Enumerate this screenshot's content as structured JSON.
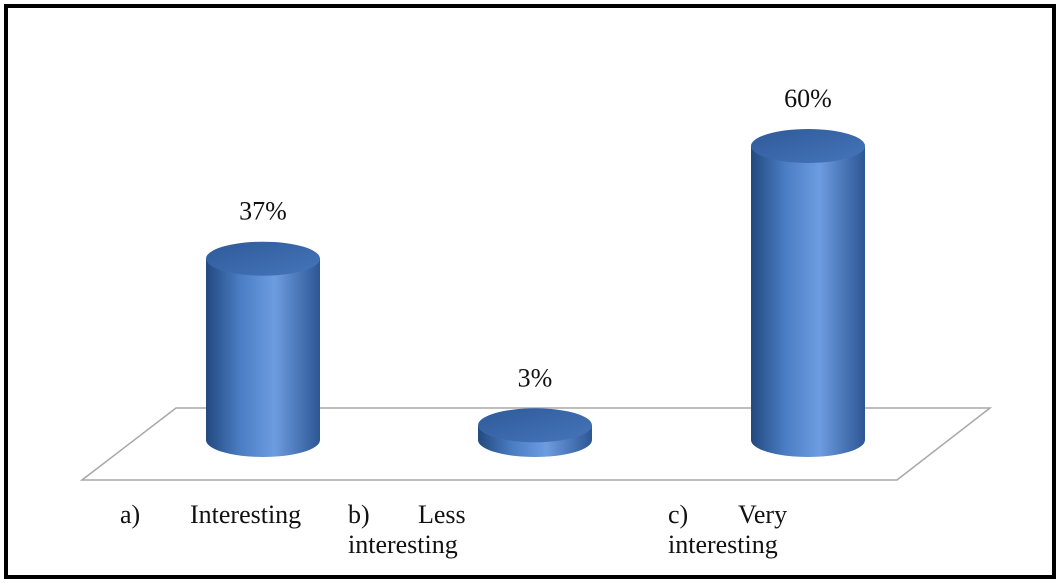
{
  "chart_data": {
    "type": "bar",
    "style": "3d-cylinder",
    "categories": [
      "Interesting",
      "Less interesting",
      "Very interesting"
    ],
    "category_markers": [
      "a)",
      "b)",
      "c)"
    ],
    "values": [
      37,
      3,
      60
    ],
    "data_labels": [
      "37%",
      "3%",
      "60%"
    ],
    "unit": "%",
    "ylim": [
      0,
      65
    ],
    "grid": false,
    "legend": "none",
    "colors": {
      "bar": "#4a7dc4",
      "bar_dark": "#23497e",
      "bar_light": "#6d9ce0",
      "top": "#3a67a8",
      "floor": "#a8a8a8",
      "frame": "#000000"
    }
  }
}
